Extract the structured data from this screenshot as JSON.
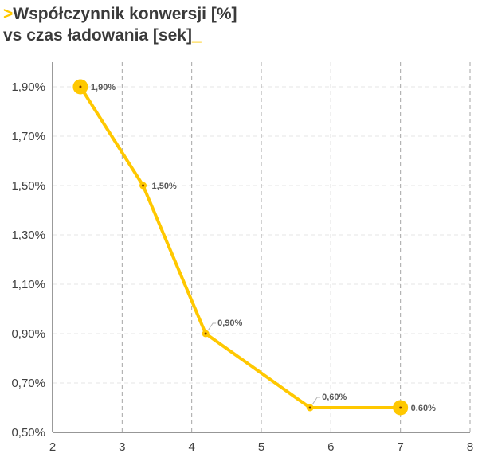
{
  "title": {
    "prefix": ">",
    "line1": "Współczynnik konwersji [%]",
    "line2": "vs czas ładowania [sek]",
    "suffix": "_"
  },
  "chart_data": {
    "type": "line",
    "x": [
      2.4,
      3.3,
      4.2,
      5.7,
      7.0
    ],
    "series": [
      {
        "values": [
          1.9,
          1.5,
          0.9,
          0.6,
          0.6
        ],
        "labels": [
          "1,90%",
          "1,50%",
          "0,90%",
          "0,60%",
          "0,60%"
        ]
      }
    ],
    "xlim": [
      2,
      8
    ],
    "ylim": [
      0.5,
      2.0
    ],
    "x_ticks": [
      2,
      3,
      4,
      5,
      6,
      7,
      8
    ],
    "x_tick_labels": [
      "2",
      "3",
      "4",
      "5",
      "6",
      "7",
      "8"
    ],
    "y_ticks": [
      0.5,
      0.7,
      0.9,
      1.1,
      1.3,
      1.5,
      1.7,
      1.9
    ],
    "y_tick_labels": [
      "0,50%",
      "0,70%",
      "0,90%",
      "1,10%",
      "1,30%",
      "1,50%",
      "1,70%",
      "1,90%"
    ],
    "highlighted_points": [
      0,
      4
    ],
    "grid": true,
    "colors": {
      "line": "#ffc800",
      "point_center": "#7a3b00",
      "vgrid": "#a6a6a6",
      "hgrid": "#e6e6e6",
      "axis": "#595959"
    }
  }
}
